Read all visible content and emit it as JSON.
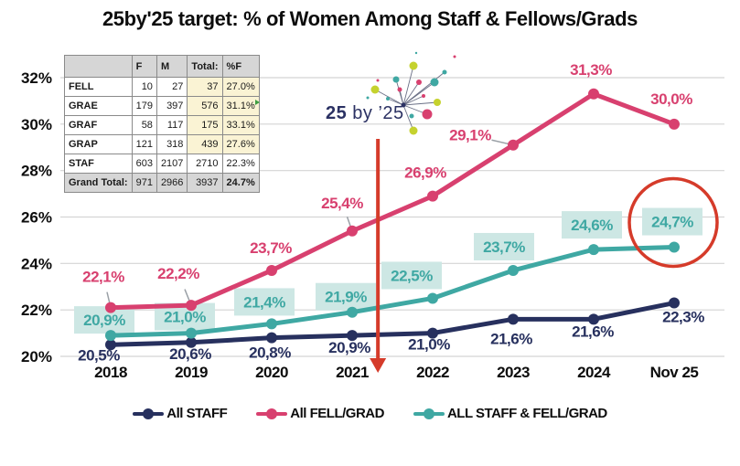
{
  "title": "25by'25 target: % of Women Among Staff & Fellows/Grads",
  "logo": {
    "prefix": "25",
    "rest": " by ’25"
  },
  "colors": {
    "navy": "#27305e",
    "pink": "#d8406f",
    "teal": "#3fa8a3",
    "red": "#d53b2a",
    "teal_box": "#cde7e4",
    "gridline": "#d4d4d4",
    "leader": "#9aa0a6",
    "axis_text": "#0d0d0d"
  },
  "table": {
    "headers": [
      "",
      "F",
      "M",
      "Total:",
      "%F"
    ],
    "rows": [
      {
        "label": "FELL",
        "f": "10",
        "m": "27",
        "total": "37",
        "pf": "27.0%",
        "shade": "yellow",
        "flag": false
      },
      {
        "label": "GRAE",
        "f": "179",
        "m": "397",
        "total": "576",
        "pf": "31.1%",
        "shade": "yellow",
        "flag": true
      },
      {
        "label": "GRAF",
        "f": "58",
        "m": "117",
        "total": "175",
        "pf": "33.1%",
        "shade": "yellow",
        "flag": false
      },
      {
        "label": "GRAP",
        "f": "121",
        "m": "318",
        "total": "439",
        "pf": "27.6%",
        "shade": "yellow",
        "flag": false
      },
      {
        "label": "STAF",
        "f": "603",
        "m": "2107",
        "total": "2710",
        "pf": "22.3%",
        "shade": "plain",
        "flag": false
      },
      {
        "label": "Grand Total:",
        "f": "971",
        "m": "2966",
        "total": "3937",
        "pf": "24.7%",
        "shade": "total",
        "flag": false
      }
    ]
  },
  "chart_data": {
    "type": "line",
    "title": "25by'25 target: % of Women Among Staff & Fellows/Grads",
    "categories": [
      "2018",
      "2019",
      "2020",
      "2021",
      "2022",
      "2023",
      "2024",
      "Nov 25"
    ],
    "y_axis": {
      "min": 20,
      "max": 32,
      "step": 2,
      "tick_labels": [
        "20%",
        "22%",
        "24%",
        "26%",
        "28%",
        "30%",
        "32%"
      ],
      "grid": true
    },
    "series": [
      {
        "name": "All STAFF",
        "color_key": "navy",
        "values": [
          20.5,
          20.6,
          20.8,
          20.9,
          21.0,
          21.6,
          21.6,
          22.3
        ],
        "labels": [
          "20,5%",
          "20,6%",
          "20,8%",
          "20,9%",
          "21,0%",
          "21,6%",
          "21,6%",
          "22,3%"
        ],
        "label_offsets": [
          [
            -13,
            11
          ],
          [
            -1,
            12
          ],
          [
            -2,
            16
          ],
          [
            -3,
            13
          ],
          [
            -4,
            12
          ],
          [
            -2,
            21
          ],
          [
            -1,
            13
          ],
          [
            10,
            15
          ]
        ],
        "boxed": false,
        "leaders": [
          false,
          false,
          false,
          false,
          false,
          false,
          false,
          false
        ]
      },
      {
        "name": "All FELL/GRAD",
        "color_key": "pink",
        "values": [
          22.1,
          22.2,
          23.7,
          25.4,
          26.9,
          29.1,
          31.3,
          30.0
        ],
        "labels": [
          "22,1%",
          "22,2%",
          "23,7%",
          "25,4%",
          "26,9%",
          "29,1%",
          "31,3%",
          "30,0%"
        ],
        "label_offsets": [
          [
            -8,
            -34
          ],
          [
            -14,
            -35
          ],
          [
            -1,
            -25
          ],
          [
            -11,
            -31
          ],
          [
            -8,
            -26
          ],
          [
            -47,
            -11
          ],
          [
            -3,
            -27
          ],
          [
            -3,
            -28
          ]
        ],
        "boxed": false,
        "leaders": [
          true,
          true,
          false,
          true,
          false,
          true,
          false,
          false
        ]
      },
      {
        "name": "ALL STAFF & FELL/GRAD",
        "color_key": "teal",
        "values": [
          20.9,
          21.0,
          21.4,
          21.9,
          22.5,
          23.7,
          24.6,
          24.7
        ],
        "labels": [
          "20,9%",
          "21,0%",
          "21,4%",
          "21,9%",
          "22,5%",
          "23,7%",
          "24,6%",
          "24,7%"
        ],
        "label_offsets": [
          [
            -7,
            -17
          ],
          [
            -7,
            -18
          ],
          [
            -8,
            -24
          ],
          [
            -7,
            -17
          ],
          [
            -23,
            -25
          ],
          [
            -10,
            -26
          ],
          [
            -2,
            -27
          ],
          [
            -2,
            -28
          ]
        ],
        "boxed": true,
        "leaders": [
          false,
          false,
          false,
          false,
          false,
          false,
          false,
          false
        ]
      }
    ],
    "annotations": {
      "down_arrow": {
        "between": [
          "2021",
          "2022"
        ],
        "x_frac": 3.32,
        "color_key": "red"
      },
      "circle_highlight": {
        "series": "ALL STAFF & FELL/GRAD",
        "category": "Nov 25",
        "label": "24,7%",
        "color_key": "red"
      }
    },
    "legend_position": "bottom"
  },
  "legend": [
    {
      "label": "All STAFF",
      "color_key": "navy"
    },
    {
      "label": "All FELL/GRAD",
      "color_key": "pink"
    },
    {
      "label": "ALL STAFF & FELL/GRAD",
      "color_key": "teal"
    }
  ]
}
